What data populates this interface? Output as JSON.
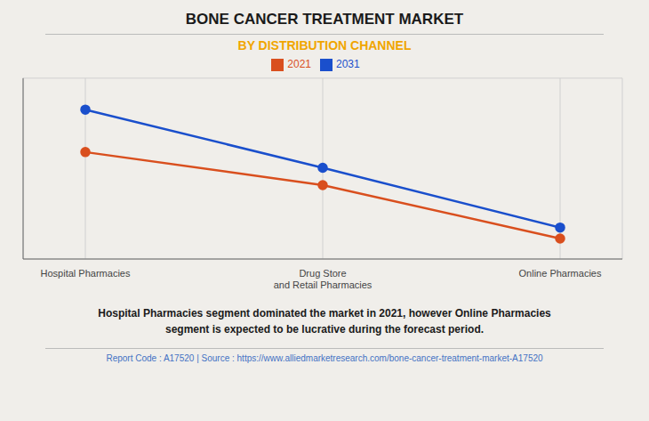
{
  "chart_data": {
    "type": "line",
    "title": "BONE CANCER TREATMENT MARKET",
    "subtitle": "BY DISTRIBUTION CHANNEL",
    "categories": [
      "Hospital Pharmacies",
      "Drug Store\nand Retail Pharmacies",
      "Online Pharmacies"
    ],
    "series": [
      {
        "name": "2021",
        "color": "#d94f1e",
        "values": [
          0.68,
          0.47,
          0.13
        ]
      },
      {
        "name": "2031",
        "color": "#1a4fcc",
        "values": [
          0.95,
          0.58,
          0.2
        ]
      }
    ],
    "ylim": [
      0.0,
      1.15
    ],
    "yticks": [
      0.05,
      0.3,
      0.55,
      0.8,
      1.05
    ],
    "grid": true,
    "tick_labels": "x",
    "legend": "top",
    "marker": "circle",
    "annotations": [
      "Hospital Pharmacies segment dominated the market in 2021, however Online Pharmacies\nsegment is expected to be lucrative during the forecast period.",
      "Report Code : A17520  |  Source : https://www.alliedmarketresearch.com/bone-cancer-treatment-market-A17520"
    ]
  }
}
